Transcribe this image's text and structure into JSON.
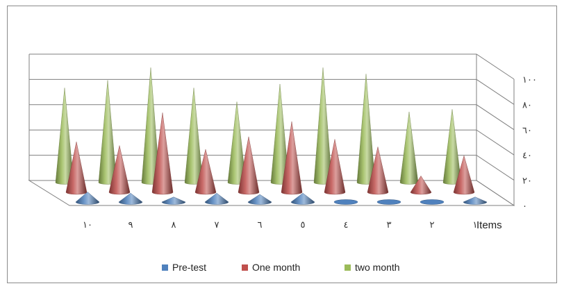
{
  "chart_data": {
    "type": "bar",
    "style": "3d-cone",
    "title": "",
    "xlabel": "Items",
    "ylabel": "",
    "ylim": [
      0,
      100
    ],
    "yticks": [
      "٠",
      "٢٠",
      "٤٠",
      "٦٠",
      "٨٠",
      "١٠٠"
    ],
    "categories": [
      "١٠",
      "٩",
      "٨",
      "٧",
      "٦",
      "٥",
      "٤",
      "٣",
      "٢",
      "١"
    ],
    "series": [
      {
        "name": "Pre-test",
        "color": "#4f81bd",
        "values": [
          8,
          7,
          4,
          7,
          6,
          7,
          0,
          0,
          0,
          4
        ]
      },
      {
        "name": "One month",
        "color": "#c0504d",
        "values": [
          40,
          37,
          63,
          34,
          44,
          56,
          42,
          36,
          13,
          29
        ]
      },
      {
        "name": "two month",
        "color": "#9bbb59",
        "values": [
          75,
          81,
          91,
          75,
          64,
          78,
          91,
          86,
          56,
          58
        ]
      }
    ],
    "legend_position": "bottom",
    "grid": true
  }
}
